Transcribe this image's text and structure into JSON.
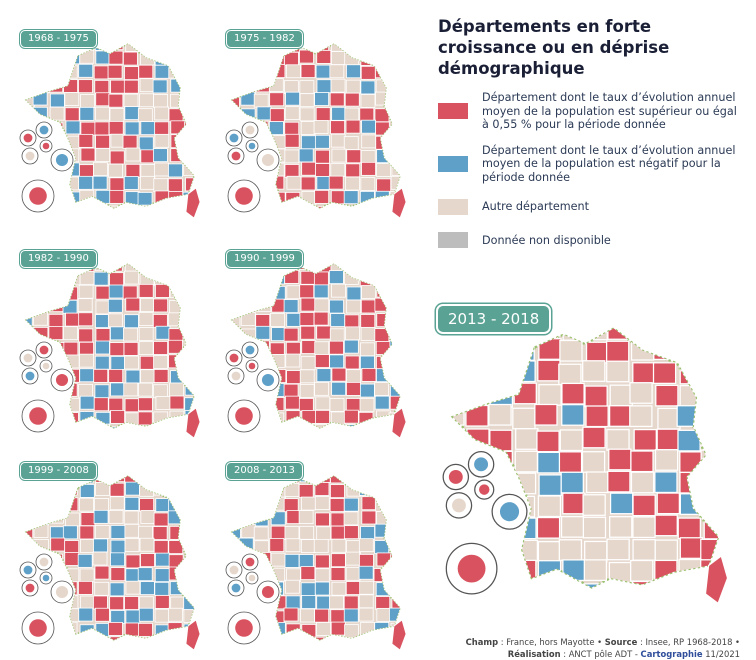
{
  "title": "Départements en forte croissance ou en déprise démographique",
  "legend": [
    {
      "key": "growth",
      "label": "Département dont le taux d’évolution annuel moyen de la population est supérieur ou égal à 0,55 % pour la période donnée",
      "color": "#d9525f"
    },
    {
      "key": "decline",
      "label": "Département dont le taux d’évolution annuel moyen de la population est négatif pour la période donnée",
      "color": "#5fa0c8"
    },
    {
      "key": "other",
      "label": "Autre département",
      "color": "#e6d7cc"
    },
    {
      "key": "na",
      "label": "Donnée non disponible",
      "color": "#bdbdbd"
    }
  ],
  "periods": [
    "1968 - 1975",
    "1975 - 1982",
    "1982 - 1990",
    "1990 - 1999",
    "1999 - 2008",
    "2008 - 2013",
    "2013 - 2018"
  ],
  "source": {
    "champ_label": "Champ",
    "champ": " : France, hors Mayotte • ",
    "source_label": "Source",
    "source": " : Insee, RP 1968-2018 •",
    "realisation_label": "Réalisation",
    "realisation": " : ANCT pôle ADT - ",
    "carto_label": "Cartographie",
    "date": " 11/2021"
  },
  "colors": {
    "growth": "#d9525f",
    "decline": "#5fa0c8",
    "other": "#e6d7cc",
    "na": "#bdbdbd",
    "badge": "#5aa394",
    "coast": "#9ac06e"
  }
}
